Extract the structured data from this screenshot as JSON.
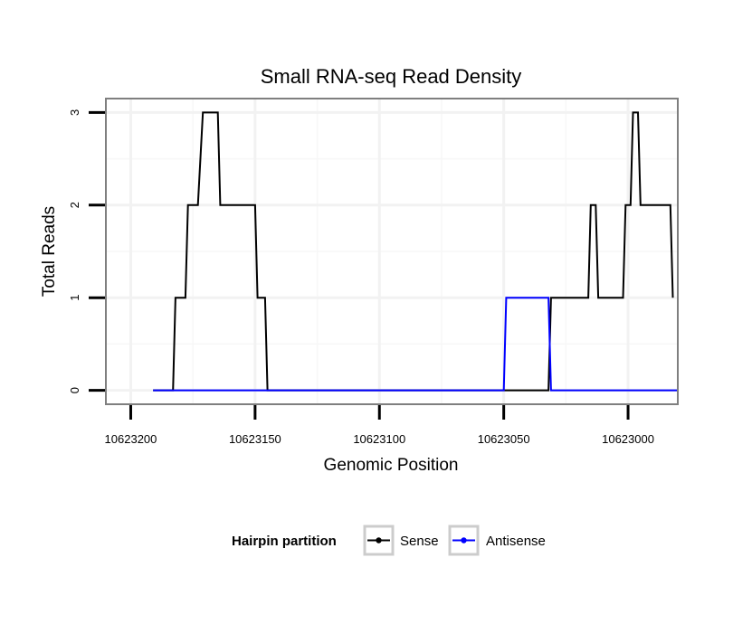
{
  "chart_data": {
    "type": "line",
    "title": "Small RNA-seq Read Density",
    "xlabel": "Genomic Position",
    "ylabel": "Total Reads",
    "x_reversed": true,
    "xlim": [
      10623210,
      10622980
    ],
    "ylim": [
      -0.15,
      3.15
    ],
    "x_ticks": [
      10623200,
      10623150,
      10623100,
      10623050,
      10623000
    ],
    "x_tick_labels": [
      "10623200",
      "10623150",
      "10623100",
      "10623050",
      "10623000"
    ],
    "y_ticks": [
      0,
      1,
      2,
      3
    ],
    "y_tick_labels": [
      "0",
      "1",
      "2",
      "3"
    ],
    "grid": true,
    "legend_position": "bottom",
    "legend": {
      "title": "Hairpin partition",
      "entries": [
        "Sense",
        "Antisense"
      ]
    },
    "series": [
      {
        "name": "Sense",
        "color": "#000000",
        "x": [
          10623191,
          10623183,
          10623182,
          10623178,
          10623177,
          10623173,
          10623171,
          10623165,
          10623164,
          10623159,
          10623158,
          10623150,
          10623149,
          10623146,
          10623145,
          10623032,
          10623031,
          10623016,
          10623015,
          10623013,
          10623012,
          10623002,
          10623001,
          10622999,
          10622998,
          10622996,
          10622995,
          10622983,
          10622982
        ],
        "values": [
          0,
          0,
          1,
          1,
          2,
          2,
          3,
          3,
          2,
          2,
          2,
          2,
          1,
          1,
          0,
          0,
          1,
          1,
          2,
          2,
          1,
          1,
          2,
          2,
          3,
          3,
          2,
          2,
          1
        ]
      },
      {
        "name": "Antisense",
        "color": "#0000ff",
        "x": [
          10623191,
          10623050,
          10623049,
          10623032,
          10623031,
          10622980
        ],
        "values": [
          0,
          0,
          1,
          1,
          0,
          0
        ]
      }
    ]
  }
}
